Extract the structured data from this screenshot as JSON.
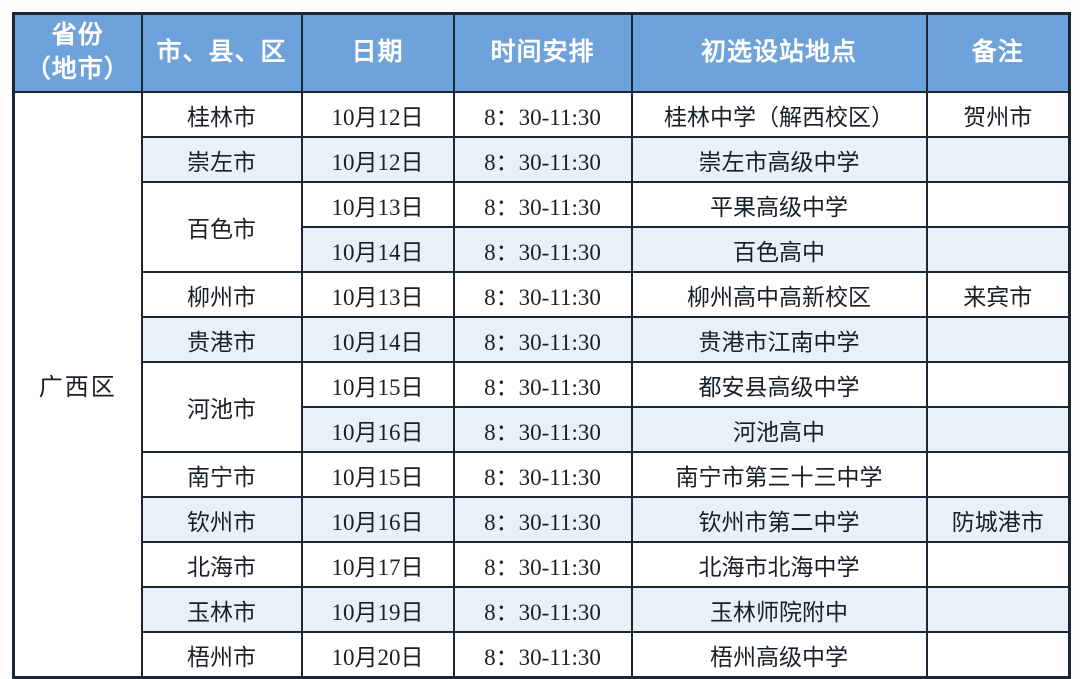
{
  "table": {
    "columns": [
      "省份\n（地市）",
      "市、县、区",
      "日期",
      "时间安排",
      "初选设站地点",
      "备注"
    ],
    "province": "广西区",
    "rows": [
      {
        "city": "桂林市",
        "span": 1,
        "date": "10月12日",
        "time": "8：30-11:30",
        "location": "桂林中学（解西校区）",
        "remark": "贺州市"
      },
      {
        "city": "崇左市",
        "span": 1,
        "date": "10月12日",
        "time": "8：30-11:30",
        "location": "崇左市高级中学",
        "remark": ""
      },
      {
        "city": "百色市",
        "span": 2,
        "date": "10月13日",
        "time": "8：30-11:30",
        "location": "平果高级中学",
        "remark": ""
      },
      {
        "city": "",
        "span": 0,
        "date": "10月14日",
        "time": "8：30-11:30",
        "location": "百色高中",
        "remark": ""
      },
      {
        "city": "柳州市",
        "span": 1,
        "date": "10月13日",
        "time": "8：30-11:30",
        "location": "柳州高中高新校区",
        "remark": "来宾市"
      },
      {
        "city": "贵港市",
        "span": 1,
        "date": "10月14日",
        "time": "8：30-11:30",
        "location": "贵港市江南中学",
        "remark": ""
      },
      {
        "city": "河池市",
        "span": 2,
        "date": "10月15日",
        "time": "8：30-11:30",
        "location": "都安县高级中学",
        "remark": ""
      },
      {
        "city": "",
        "span": 0,
        "date": "10月16日",
        "time": "8：30-11:30",
        "location": "河池高中",
        "remark": ""
      },
      {
        "city": "南宁市",
        "span": 1,
        "date": "10月15日",
        "time": "8：30-11:30",
        "location": "南宁市第三十三中学",
        "remark": ""
      },
      {
        "city": "钦州市",
        "span": 1,
        "date": "10月16日",
        "time": "8：30-11:30",
        "location": "钦州市第二中学",
        "remark": "防城港市"
      },
      {
        "city": "北海市",
        "span": 1,
        "date": "10月17日",
        "time": "8：30-11:30",
        "location": "北海市北海中学",
        "remark": ""
      },
      {
        "city": "玉林市",
        "span": 1,
        "date": "10月19日",
        "time": "8：30-11:30",
        "location": "玉林师院附中",
        "remark": ""
      },
      {
        "city": "梧州市",
        "span": 1,
        "date": "10月20日",
        "time": "8：30-11:30",
        "location": "梧州高级中学",
        "remark": ""
      }
    ],
    "colors": {
      "header_bg": "#6ea2da",
      "header_text": "#ffffff",
      "row_bg": "#ffffff",
      "row_alt_bg": "#e8f1fa",
      "border": "#1c2733",
      "text": "#1a1f26"
    }
  }
}
